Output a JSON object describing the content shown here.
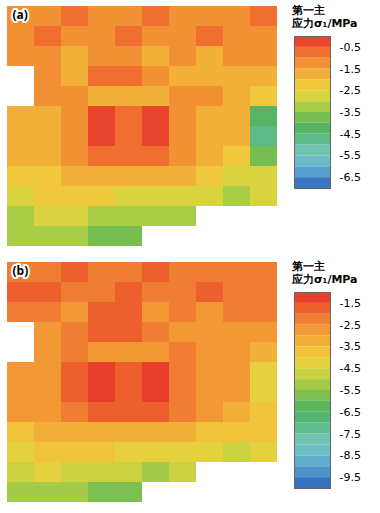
{
  "chart_data": [
    {
      "type": "heatmap",
      "title": "(a)",
      "tick_labels": false,
      "colorbar": {
        "title": [
          "第一主",
          "应力σ₁/MPa"
        ],
        "range": [
          -7,
          0
        ],
        "ticks": [
          -0.5,
          -1.5,
          -2.5,
          -3.5,
          -4.5,
          -5.5,
          -6.5
        ]
      },
      "cells": [
        [
          -1.5,
          -1.5,
          -1,
          -1.5,
          -1.5,
          -1,
          -1.5,
          -1.5,
          -1.5,
          -1
        ],
        [
          -1.5,
          -1,
          -1.5,
          -1.5,
          -1,
          -1.5,
          -1.5,
          -1,
          -1.5,
          -1.5
        ],
        [
          -1.5,
          -1.5,
          -2,
          -1.5,
          -1.5,
          -2,
          -1.5,
          -2,
          -1.5,
          -1.5
        ],
        [
          null,
          -1.5,
          -2,
          -1,
          -1,
          -1.5,
          -2,
          -2,
          -2,
          -2
        ],
        [
          null,
          -1.5,
          -1.5,
          -2,
          -2,
          -2,
          -1.5,
          -1.5,
          -2,
          -2.5
        ],
        [
          -2,
          -2,
          -1.5,
          -0.5,
          -1,
          -0.5,
          -1.5,
          -2,
          -2,
          -4.5
        ],
        [
          -2,
          -2,
          -1.5,
          -0.5,
          -1,
          -0.5,
          -1.5,
          -2,
          -2,
          -5
        ],
        [
          -2,
          -2,
          -1.5,
          -1,
          -1,
          -1,
          -1.5,
          -2,
          -2.5,
          -4
        ],
        [
          -2.5,
          -2.5,
          -2,
          -2,
          -2,
          -2,
          -2,
          -2.5,
          -3,
          -3
        ],
        [
          -3,
          -2.5,
          -2.5,
          -2.5,
          -3,
          -3,
          -3,
          -3,
          -3.5,
          -3
        ],
        [
          -3.5,
          -3,
          -3,
          -3.5,
          -3.5,
          -3.5,
          -3.5,
          null,
          null,
          null
        ],
        [
          -3.5,
          -3.5,
          -3.5,
          -4,
          -4,
          null,
          null,
          null,
          null,
          null
        ]
      ]
    },
    {
      "type": "heatmap",
      "title": "(b)",
      "tick_labels": false,
      "colorbar": {
        "title": [
          "第一主",
          "应力σ₁/MPa"
        ],
        "range": [
          -10,
          -1
        ],
        "ticks": [
          -1.5,
          -2.5,
          -3.5,
          -4.5,
          -5.5,
          -6.5,
          -7.5,
          -8.5,
          -9.5
        ]
      },
      "cells": [
        [
          -2.5,
          -2.5,
          -2,
          -2.5,
          -2.5,
          -2,
          -2.5,
          -2.5,
          -2.5,
          -2.5
        ],
        [
          -2,
          -2,
          -2.5,
          -2.5,
          -2,
          -2.5,
          -2.5,
          -2,
          -2.5,
          -2.5
        ],
        [
          -2.5,
          -2.5,
          -3,
          -2,
          -2,
          -3,
          -2.5,
          -3,
          -2.5,
          -2.5
        ],
        [
          null,
          -3,
          -2.5,
          -2,
          -2,
          -2.5,
          -3,
          -3,
          -3,
          -3
        ],
        [
          null,
          -3,
          -2.5,
          -3,
          -3,
          -3,
          -2.5,
          -3,
          -3,
          -3.5
        ],
        [
          -3,
          -3,
          -2,
          -1.5,
          -2,
          -1.5,
          -2.5,
          -3,
          -3,
          -4.5
        ],
        [
          -3,
          -3,
          -2,
          -1.5,
          -2,
          -1.5,
          -2.5,
          -3,
          -3,
          -4.5
        ],
        [
          -3,
          -3,
          -2.5,
          -2,
          -2,
          -2,
          -2.5,
          -3,
          -3.5,
          -4
        ],
        [
          -4,
          -3.5,
          -3.5,
          -3.5,
          -3.5,
          -3.5,
          -3.5,
          -4,
          -4,
          -4
        ],
        [
          -4.5,
          -4,
          -4,
          -4,
          -4.5,
          -4.5,
          -4.5,
          -4.5,
          -5,
          -4.5
        ],
        [
          -5,
          -4.5,
          -5,
          -5,
          -5,
          -5.5,
          -5,
          null,
          null,
          null
        ],
        [
          -5.5,
          -5.5,
          -5.5,
          -6,
          -6,
          null,
          null,
          null,
          null,
          null
        ]
      ]
    }
  ]
}
